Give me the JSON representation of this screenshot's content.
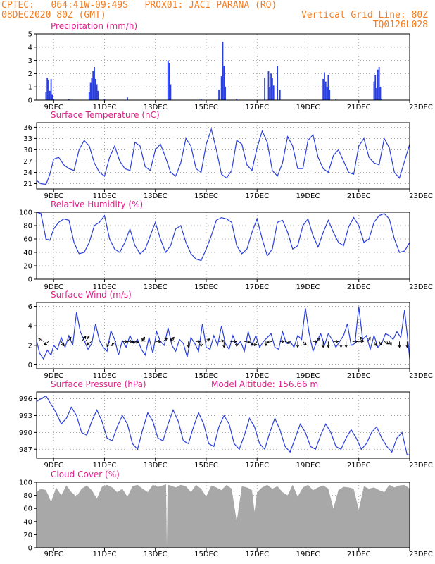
{
  "header": {
    "line1_left": "CPTEC:   064:41W-09:49S   PROX01: JACI PARANA (RO)",
    "line2_left": "08DEC2020 80Z (GMT)",
    "line2_right": "Vertical Grid Line: 80Z",
    "line3_right": "TQ0126L028"
  },
  "colors": {
    "header": "#f47c20",
    "title": "#e0208a",
    "series": "#2a3fdc",
    "cloud": "#a8a8a8",
    "wind_arrow": "#000000"
  },
  "x_axis": {
    "ticks": [
      "9DEC",
      "11DEC",
      "13DEC",
      "15DEC",
      "17DEC",
      "19DEC",
      "21DEC",
      "23DEC"
    ],
    "range_days": [
      8.33,
      23.0
    ]
  },
  "chart_data": [
    {
      "type": "bar",
      "title": "Precipitation (mm/h)",
      "ylim": [
        0,
        5
      ],
      "yticks": [
        0,
        1,
        2,
        3,
        4,
        5
      ],
      "grid": true,
      "x": [
        8.7,
        8.75,
        8.8,
        8.85,
        8.9,
        8.95,
        9.0,
        9.6,
        10.4,
        10.45,
        10.5,
        10.55,
        10.6,
        10.65,
        10.7,
        10.75,
        11.0,
        11.9,
        13.5,
        13.55,
        13.6,
        14.8,
        15.5,
        15.6,
        15.65,
        15.7,
        15.75,
        16.2,
        17.3,
        17.45,
        17.5,
        17.55,
        17.6,
        17.65,
        17.8,
        17.9,
        19.6,
        19.65,
        19.7,
        19.75,
        19.8,
        19.85,
        20.1,
        21.6,
        21.65,
        21.7,
        21.75,
        21.8,
        21.85,
        21.9
      ],
      "values": [
        0.6,
        1.7,
        1.5,
        0.7,
        1.6,
        0.4,
        0.1,
        0.1,
        0.6,
        1.3,
        1.7,
        2.2,
        2.5,
        1.6,
        1.2,
        0.7,
        0.1,
        0.2,
        3.0,
        2.8,
        1.2,
        0.1,
        0.8,
        1.8,
        4.4,
        2.6,
        1.0,
        0.1,
        1.7,
        2.2,
        1.0,
        2.0,
        1.7,
        1.1,
        2.6,
        0.8,
        1.6,
        2.1,
        1.4,
        1.0,
        1.9,
        0.8,
        0.1,
        1.4,
        1.9,
        0.9,
        2.3,
        2.5,
        1.0,
        0.1
      ]
    },
    {
      "type": "line",
      "title": "Surface Temperature (nC)",
      "ylim": [
        19.6,
        37.2
      ],
      "yticks": [
        21,
        24,
        27,
        30,
        33,
        36
      ],
      "grid": true,
      "x": [
        8.33,
        8.5,
        8.7,
        8.85,
        9.0,
        9.2,
        9.4,
        9.6,
        9.8,
        10.0,
        10.2,
        10.4,
        10.6,
        10.8,
        11.0,
        11.2,
        11.4,
        11.6,
        11.8,
        12.0,
        12.2,
        12.4,
        12.6,
        12.8,
        13.0,
        13.2,
        13.4,
        13.6,
        13.8,
        14.0,
        14.2,
        14.4,
        14.6,
        14.8,
        15.0,
        15.2,
        15.4,
        15.6,
        15.8,
        16.0,
        16.2,
        16.4,
        16.6,
        16.8,
        17.0,
        17.2,
        17.4,
        17.6,
        17.8,
        18.0,
        18.2,
        18.4,
        18.6,
        18.8,
        19.0,
        19.2,
        19.4,
        19.6,
        19.8,
        20.0,
        20.2,
        20.4,
        20.6,
        20.8,
        21.0,
        21.2,
        21.4,
        21.6,
        21.8,
        22.0,
        22.2,
        22.4,
        22.6,
        22.8,
        23.0
      ],
      "values": [
        21.8,
        21.0,
        20.8,
        23.5,
        27.5,
        28.0,
        26.0,
        25.0,
        24.5,
        30.0,
        32.5,
        31.0,
        26.5,
        24.0,
        23.0,
        28.0,
        31.0,
        27.0,
        25.0,
        24.5,
        32.0,
        31.0,
        25.5,
        24.5,
        30.0,
        31.5,
        28.0,
        24.0,
        23.0,
        26.5,
        33.0,
        31.0,
        25.0,
        24.0,
        31.5,
        35.5,
        30.0,
        23.5,
        22.5,
        24.5,
        32.5,
        31.5,
        26.0,
        24.5,
        30.5,
        35.0,
        32.0,
        24.5,
        23.0,
        26.5,
        33.5,
        31.0,
        25.0,
        25.0,
        32.5,
        34.0,
        28.0,
        25.0,
        24.0,
        28.5,
        30.0,
        27.0,
        24.0,
        23.5,
        31.0,
        33.0,
        28.0,
        26.5,
        26.0,
        33.0,
        30.5,
        24.0,
        22.5,
        27.0,
        31.5
      ]
    },
    {
      "type": "line",
      "title": "Relative Humidity (%)",
      "ylim": [
        0,
        100
      ],
      "yticks": [
        0,
        20,
        40,
        60,
        80,
        100
      ],
      "grid": true,
      "x": [
        8.33,
        8.5,
        8.7,
        8.85,
        9.0,
        9.2,
        9.4,
        9.6,
        9.8,
        10.0,
        10.2,
        10.4,
        10.6,
        10.8,
        11.0,
        11.2,
        11.4,
        11.6,
        11.8,
        12.0,
        12.2,
        12.4,
        12.6,
        12.8,
        13.0,
        13.2,
        13.4,
        13.6,
        13.8,
        14.0,
        14.2,
        14.4,
        14.6,
        14.8,
        15.0,
        15.2,
        15.4,
        15.6,
        15.8,
        16.0,
        16.2,
        16.4,
        16.6,
        16.8,
        17.0,
        17.2,
        17.4,
        17.6,
        17.8,
        18.0,
        18.2,
        18.4,
        18.6,
        18.8,
        19.0,
        19.2,
        19.4,
        19.6,
        19.8,
        20.0,
        20.2,
        20.4,
        20.6,
        20.8,
        21.0,
        21.2,
        21.4,
        21.6,
        21.8,
        22.0,
        22.2,
        22.4,
        22.6,
        22.8,
        23.0
      ],
      "values": [
        100,
        98,
        60,
        58,
        75,
        85,
        90,
        88,
        55,
        38,
        40,
        55,
        80,
        85,
        95,
        60,
        45,
        40,
        55,
        75,
        50,
        38,
        45,
        65,
        85,
        60,
        40,
        50,
        75,
        80,
        55,
        38,
        30,
        28,
        45,
        65,
        88,
        92,
        90,
        85,
        50,
        38,
        45,
        70,
        90,
        60,
        35,
        45,
        85,
        88,
        70,
        45,
        50,
        80,
        90,
        65,
        48,
        70,
        88,
        70,
        55,
        50,
        78,
        92,
        80,
        55,
        60,
        85,
        95,
        98,
        90,
        60,
        40,
        42,
        55
      ]
    },
    {
      "type": "line",
      "title": "Surface Wind (m/s)",
      "ylim": [
        -0.4,
        6.4
      ],
      "yticks": [
        0,
        2,
        4,
        6
      ],
      "grid": true,
      "x": [
        8.33,
        8.45,
        8.6,
        8.75,
        8.9,
        9.0,
        9.15,
        9.3,
        9.45,
        9.6,
        9.75,
        9.9,
        10.05,
        10.2,
        10.35,
        10.5,
        10.65,
        10.8,
        10.95,
        11.1,
        11.25,
        11.4,
        11.55,
        11.7,
        11.85,
        12.0,
        12.15,
        12.3,
        12.45,
        12.6,
        12.75,
        12.9,
        13.05,
        13.2,
        13.35,
        13.5,
        13.65,
        13.8,
        13.95,
        14.1,
        14.25,
        14.4,
        14.55,
        14.7,
        14.85,
        15.0,
        15.15,
        15.3,
        15.45,
        15.6,
        15.75,
        15.9,
        16.05,
        16.2,
        16.35,
        16.5,
        16.65,
        16.8,
        16.95,
        17.1,
        17.25,
        17.4,
        17.55,
        17.7,
        17.85,
        18.0,
        18.15,
        18.3,
        18.45,
        18.6,
        18.75,
        18.9,
        19.05,
        19.2,
        19.35,
        19.5,
        19.65,
        19.8,
        19.95,
        20.1,
        20.25,
        20.4,
        20.55,
        20.7,
        20.85,
        21.0,
        21.15,
        21.3,
        21.45,
        21.6,
        21.75,
        21.9,
        22.05,
        22.2,
        22.35,
        22.5,
        22.65,
        22.8,
        22.95,
        23.0
      ],
      "values": [
        2.5,
        1.2,
        0.6,
        1.5,
        1.0,
        2.0,
        1.6,
        2.8,
        1.8,
        3.0,
        2.0,
        5.4,
        3.4,
        2.5,
        1.6,
        2.2,
        4.2,
        2.5,
        1.8,
        1.4,
        3.5,
        2.6,
        1.0,
        2.5,
        1.8,
        3.0,
        2.2,
        2.6,
        1.6,
        1.0,
        2.8,
        1.2,
        3.4,
        2.4,
        2.0,
        3.8,
        2.0,
        1.4,
        2.6,
        2.2,
        0.8,
        2.8,
        2.2,
        1.4,
        4.2,
        1.8,
        1.6,
        3.0,
        2.0,
        4.0,
        2.2,
        1.6,
        3.0,
        2.0,
        2.4,
        1.4,
        3.4,
        2.0,
        3.0,
        1.8,
        2.4,
        2.8,
        3.2,
        1.8,
        1.6,
        3.4,
        2.2,
        2.4,
        1.8,
        3.0,
        2.6,
        5.8,
        3.2,
        1.4,
        2.4,
        3.2,
        2.0,
        3.2,
        2.6,
        1.8,
        2.4,
        3.0,
        4.2,
        2.0,
        2.2,
        6.0,
        2.6,
        3.0,
        1.6,
        3.0,
        1.8,
        2.2,
        3.2,
        3.0,
        2.6,
        3.4,
        2.8,
        5.6,
        2.0,
        0.6
      ],
      "vectors": {
        "x": [
          8.6,
          8.8,
          9.3,
          9.55,
          10.1,
          10.25,
          10.5,
          11.2,
          11.45,
          11.7,
          11.9,
          12.1,
          12.3,
          12.45,
          12.6,
          13.0,
          13.3,
          13.6,
          13.75,
          14.3,
          14.6,
          14.8,
          15.0,
          15.5,
          15.7,
          15.95,
          16.2,
          16.5,
          16.7,
          17.0,
          17.35,
          17.6,
          17.9,
          18.1,
          18.6,
          18.8,
          19.2,
          19.35,
          19.6,
          19.8,
          20.0,
          20.3,
          20.5,
          20.75,
          20.95,
          21.2,
          21.35,
          21.6,
          21.8,
          22.0,
          22.2,
          22.6,
          22.9
        ],
        "u": [
          -1.2,
          -1.0,
          0.6,
          0.8,
          1.0,
          0.9,
          -1.2,
          -0.6,
          -1.0,
          1.2,
          1.2,
          1.4,
          -1.2,
          0.8,
          -0.8,
          1.3,
          1.0,
          0.8,
          -1.0,
          0.0,
          1.0,
          0.0,
          0.8,
          1.2,
          0.0,
          1.4,
          0.0,
          1.2,
          1.0,
          -0.6,
          0.0,
          -1.2,
          1.0,
          1.2,
          0.0,
          0.8,
          1.0,
          0.8,
          0.0,
          0.0,
          1.2,
          0.0,
          0.0,
          1.2,
          1.4,
          -0.8,
          0.6,
          0.5,
          0.6,
          1.0,
          0.5,
          0.0,
          0.0
        ],
        "v": [
          0.8,
          -0.8,
          -1.0,
          1.0,
          1.2,
          1.2,
          -0.8,
          -1.2,
          -1.0,
          0.0,
          0.0,
          -0.2,
          -0.2,
          1.0,
          0.6,
          0.0,
          0.8,
          1.0,
          0.6,
          -1.4,
          0.0,
          -1.2,
          0.6,
          0.2,
          -1.4,
          0.0,
          -1.2,
          -0.2,
          -0.8,
          -1.0,
          -1.0,
          -0.2,
          0.0,
          -0.4,
          -1.4,
          -0.8,
          0.0,
          0.8,
          -1.4,
          -1.4,
          0.0,
          -1.4,
          -1.4,
          0.0,
          0.0,
          1.0,
          1.0,
          -1.0,
          -0.8,
          -0.6,
          -0.8,
          -1.4,
          -1.4
        ]
      }
    },
    {
      "type": "line",
      "title": "Surface Pressure (hPa)",
      "annotation": "Model Altitude: 156.66 m",
      "ylim": [
        985.4,
        997.2
      ],
      "yticks": [
        987,
        990,
        993,
        996
      ],
      "grid": true,
      "x": [
        8.33,
        8.5,
        8.7,
        8.9,
        9.1,
        9.3,
        9.5,
        9.7,
        9.9,
        10.1,
        10.3,
        10.5,
        10.7,
        10.9,
        11.1,
        11.3,
        11.5,
        11.7,
        11.9,
        12.1,
        12.3,
        12.5,
        12.7,
        12.9,
        13.1,
        13.3,
        13.5,
        13.7,
        13.9,
        14.1,
        14.3,
        14.5,
        14.7,
        14.9,
        15.1,
        15.3,
        15.5,
        15.7,
        15.9,
        16.1,
        16.3,
        16.5,
        16.7,
        16.9,
        17.1,
        17.3,
        17.5,
        17.7,
        17.9,
        18.1,
        18.3,
        18.5,
        18.7,
        18.9,
        19.1,
        19.3,
        19.5,
        19.7,
        19.9,
        20.1,
        20.3,
        20.5,
        20.7,
        20.9,
        21.1,
        21.3,
        21.5,
        21.7,
        21.9,
        22.1,
        22.3,
        22.5,
        22.7,
        22.9,
        23.0
      ],
      "values": [
        995.5,
        996.0,
        996.5,
        995.0,
        993.5,
        991.5,
        992.5,
        994.5,
        993.0,
        990.0,
        989.5,
        992.0,
        994.0,
        992.0,
        989.0,
        988.5,
        991.0,
        993.0,
        991.5,
        988.0,
        987.0,
        990.5,
        993.5,
        992.0,
        989.0,
        988.5,
        991.5,
        994.0,
        992.0,
        988.5,
        988.0,
        991.0,
        993.5,
        991.5,
        988.0,
        987.5,
        991.0,
        993.0,
        991.5,
        988.0,
        987.0,
        989.5,
        992.5,
        991.0,
        988.0,
        987.0,
        990.0,
        992.5,
        990.5,
        987.5,
        986.5,
        989.0,
        991.5,
        990.0,
        987.5,
        987.0,
        989.5,
        991.5,
        990.0,
        987.5,
        987.0,
        989.0,
        990.5,
        989.0,
        987.0,
        988.0,
        990.0,
        991.0,
        989.0,
        987.5,
        986.5,
        989.0,
        990.0,
        986.0,
        986.0
      ]
    },
    {
      "type": "area",
      "title": "Cloud Cover (%)",
      "ylim": [
        0,
        100
      ],
      "yticks": [
        0,
        20,
        40,
        60,
        80,
        100
      ],
      "grid": true,
      "x": [
        8.33,
        8.5,
        8.7,
        8.9,
        9.1,
        9.3,
        9.5,
        9.7,
        9.9,
        10.1,
        10.3,
        10.5,
        10.7,
        10.9,
        11.1,
        11.3,
        11.5,
        11.7,
        11.9,
        12.1,
        12.3,
        12.5,
        12.7,
        12.9,
        13.1,
        13.3,
        13.42,
        13.45,
        13.48,
        13.6,
        13.8,
        14.0,
        14.2,
        14.4,
        14.6,
        14.8,
        15.0,
        15.2,
        15.4,
        15.6,
        15.8,
        16.0,
        16.2,
        16.4,
        16.6,
        16.8,
        16.9,
        17.0,
        17.2,
        17.4,
        17.6,
        17.8,
        18.0,
        18.2,
        18.4,
        18.6,
        18.8,
        19.0,
        19.2,
        19.4,
        19.6,
        19.8,
        20.0,
        20.2,
        20.4,
        20.6,
        20.8,
        21.0,
        21.2,
        21.4,
        21.6,
        21.8,
        22.0,
        22.2,
        22.4,
        22.6,
        22.8,
        23.0
      ],
      "values": [
        85,
        90,
        88,
        70,
        92,
        80,
        95,
        85,
        78,
        90,
        95,
        88,
        75,
        93,
        96,
        92,
        85,
        90,
        78,
        94,
        96,
        90,
        85,
        96,
        93,
        95,
        97,
        3,
        96,
        95,
        92,
        96,
        94,
        85,
        96,
        90,
        78,
        95,
        92,
        88,
        96,
        90,
        40,
        94,
        92,
        88,
        55,
        85,
        92,
        96,
        90,
        94,
        85,
        80,
        96,
        78,
        92,
        96,
        88,
        92,
        95,
        90,
        60,
        88,
        93,
        92,
        90,
        58,
        94,
        90,
        92,
        88,
        85,
        96,
        92,
        95,
        96,
        90
      ]
    }
  ]
}
